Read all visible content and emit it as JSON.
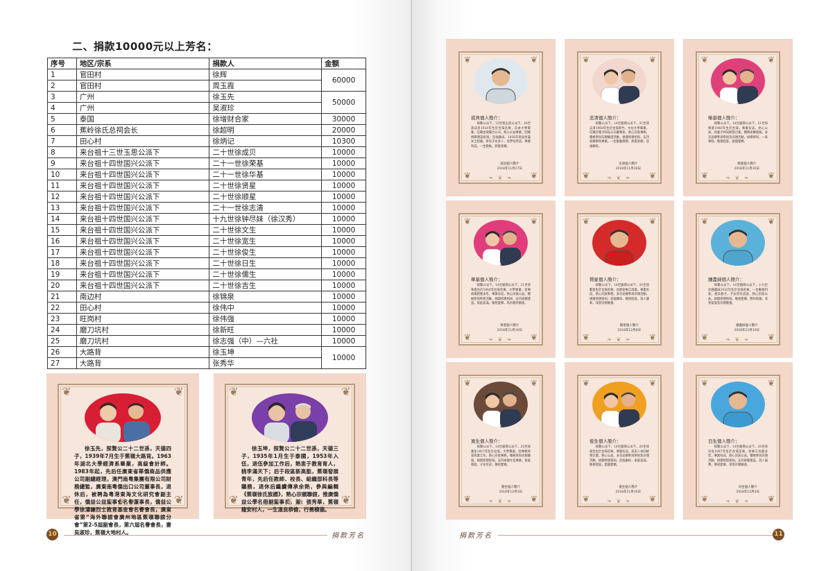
{
  "left_page": {
    "section_title": "二、捐款10000元以上芳名：",
    "table": {
      "headers": [
        "序号",
        "地区/宗系",
        "捐款人",
        "金额"
      ],
      "rows": [
        [
          "1",
          "官田村",
          "徐辉"
        ],
        [
          "2",
          "官田村",
          "周玉霞"
        ],
        [
          "3",
          "广州",
          "徐玉先"
        ],
        [
          "4",
          "广州",
          "吴淑珍"
        ],
        [
          "5",
          "泰国",
          "徐增财合家"
        ],
        [
          "6",
          "蕉岭徐氏总祠会长",
          "徐超明"
        ],
        [
          "7",
          "田心村",
          "徐炳记"
        ],
        [
          "8",
          "来台祖十三世玉思公派下",
          "二十世徐成贝"
        ],
        [
          "9",
          "来台祖十四世国兴公派下",
          "二十一世徐荣基"
        ],
        [
          "10",
          "来台祖十四世国兴公派下",
          "二十一世徐华基"
        ],
        [
          "11",
          "来台祖十四世国兴公派下",
          "二十世徐贤星"
        ],
        [
          "12",
          "来台祖十四世国兴公派下",
          "二十世徐顺星"
        ],
        [
          "13",
          "来台祖十四世国兴公派下",
          "二十一世徐志清"
        ],
        [
          "14",
          "来台祖十四世国兴公派下",
          "十九世徐钟尽妹（徐汉秀）"
        ],
        [
          "15",
          "来台祖十四世国兴公派下",
          "二十世徐文生"
        ],
        [
          "16",
          "来台祖十四世国兴公派下",
          "二十世徐宽生"
        ],
        [
          "17",
          "来台祖十四世国兴公派下",
          "二十世徐俊生"
        ],
        [
          "18",
          "来台祖十四世国兴公派下",
          "二十世徐日生"
        ],
        [
          "19",
          "来台祖十四世国兴公派下",
          "二十世徐儒生"
        ],
        [
          "20",
          "来台祖十四世国兴公派下",
          "二十世徐吉生"
        ],
        [
          "21",
          "南边村",
          "徐锦泉"
        ],
        [
          "22",
          "田心村",
          "徐伟中"
        ],
        [
          "23",
          "旺岗村",
          "徐伟强"
        ],
        [
          "24",
          "磨刀坑村",
          "徐新旺"
        ],
        [
          "25",
          "磨刀坑村",
          "徐志强（中）—六社"
        ],
        [
          "26",
          "大路背",
          "徐玉坤"
        ],
        [
          "27",
          "大路背",
          "张秀华"
        ]
      ],
      "amounts": [
        {
          "value": "60000",
          "rowspan": 2
        },
        {
          "value": "50000",
          "rowspan": 2
        },
        {
          "value": "30000",
          "rowspan": 1
        },
        {
          "value": "20000",
          "rowspan": 1
        },
        {
          "value": "10300",
          "rowspan": 1
        },
        {
          "value": "10000",
          "rowspan": 1
        },
        {
          "value": "10000",
          "rowspan": 1
        },
        {
          "value": "10000",
          "rowspan": 1
        },
        {
          "value": "10000",
          "rowspan": 1
        },
        {
          "value": "10000",
          "rowspan": 1
        },
        {
          "value": "10000",
          "rowspan": 1
        },
        {
          "value": "10000",
          "rowspan": 1
        },
        {
          "value": "10000",
          "rowspan": 1
        },
        {
          "value": "10000",
          "rowspan": 1
        },
        {
          "value": "10000",
          "rowspan": 1
        },
        {
          "value": "10000",
          "rowspan": 1
        },
        {
          "value": "10000",
          "rowspan": 1
        },
        {
          "value": "10000",
          "rowspan": 1
        },
        {
          "value": "10000",
          "rowspan": 1
        },
        {
          "value": "10000",
          "rowspan": 1
        },
        {
          "value": "10000",
          "rowspan": 1
        },
        {
          "value": "10000",
          "rowspan": 1
        },
        {
          "value": "10000",
          "rowspan": 1
        },
        {
          "value": "10000",
          "rowspan": 2
        }
      ]
    },
    "bio_cards": [
      {
        "text": "徐玉先，探賢公二十二世孫，天德四子，1939年7月生于蕉嶺大路背。1963年湖北大學經濟系畢業，高級會計師。1983年起，先后任廣東省華僑商品供應公司副總經理，澳門南粵集團有限公司財務總監，廣東南粵僑出口公司董事長，退休后，被聘為粵港東海文化研究會副主任，僑益公益董事會名譽董事長，僑益公學徐濤謙烈士教育基金會名譽會長，廣東省第“海外聯誼會廣州地區蕉嶺聯誼分會”第2-5屆副會長，第六屆名譽會長，妻吳淑珍，蕉嶺大地村人。"
      },
      {
        "text": "徐玉坤，探賢公二十二世孫，天德三子，1935年1月生于泰國，1953年入伍，退伍參加工作后，熱衷于教育育人，桃李滿天下；后于段區新高能，蕉嶺發展青年，先后任教師、校長、組織部科長等職務，退休后繼續傳承余熱，參與編輯《蕉嶺徐氏族譜》，熱心宗親聯誼，推廣僑益公學名冊副董事長，兼、張秀華，蕉嶺龍安村人，一生溫良恭儉，行善積德。"
      }
    ],
    "footer": {
      "page_number": "10",
      "label": "捐款芳名"
    }
  },
  "right_page": {
    "intros": [
      {
        "title": "成貝個人簡介：",
        "body": "探賢公派下，13世祖玉思公派下，20世孫成貝1934年生於台灣苗栗，日本大學畢業，任職台灣電力公司，熱心公益事業，回鄉捐資建設祖祠，造福桑梓。1956年與吳秀鑾女士結婚，育有子女多人，皆學有所成，事業有成。一生勤勉，熱愛家鄉。",
        "signature": "成貝個人簡介\n2018年11月27日"
      },
      {
        "title": "志清個人簡介：",
        "body": "探賢公派下，14世國興公派下，21世孫志清1960年生於台灣新竹，文化大學畢業，任職於電子科技公司董事長，熱心宗族事務，積極參與宗親聯誼活動，捐資修建祖祠，支持家鄉教育事業，一生勤奮樸實，熱愛家鄉，造福鄉梓。",
        "signature": "志清個人簡介\n2018年11月30日"
      },
      {
        "title": "榮基個人簡介：",
        "body": "探賢公派下，14世國興公派下，21世孫榮基1960年生於台灣，事業有成，熱心公益，與妻子共同經營企業，關懷家鄉發展，多次返鄉參與祭祖及宗親活動，捐資修祠，一家和睦，敬祖睦族，愛國愛鄉。",
        "signature": "榮基個人簡介\n2018年11月30日"
      },
      {
        "title": "華基個人簡介：",
        "body": "探賢公派下，14世國興公派下，21世孫華基生於1964年台灣苗栗，大學畢業，從事商業經營多年，事業有成，熱心宗族公益，積極參與祭祖活動，捐資修建祖祠，支持家鄉建設，家庭美滿，敬祖愛鄉，為宗親所稱道。",
        "signature": "華基個人簡介\n2018年11月30日"
      },
      {
        "title": "賢星個人簡介：",
        "body": "探賢公派下，14世國興公派下，20世孫賢星生於台灣苗栗，長期從事工商業，事業有成，熱心宗族事務，多次返鄉參與宗親活動，捐資修建祖祠，造福鄉梓，敬祖睦族，為人謙和，深受宗親敬重。",
        "signature": "賢星個人簡介\n2018年12月8日"
      },
      {
        "title": "鍾盡妹個人簡介：",
        "body": "探賢公派下，14世國興公派下，十九世徐鍾盡妹1932年生於台灣苗栗，一生勤儉持家，相夫教子，子女皆有成就，熱心宗族公益，捐資修建祖祠，敬祖愛鄉，慈祥和藹，深受家族及宗親敬重。",
        "signature": "鍾盡妹個人簡介\n2018年11月30日"
      },
      {
        "title": "寬生個人簡介：",
        "body": "探賢公派下，14世國興公派下，20世孫寬生1957年生於台灣，大學畢業，從事教育及商業工作，熱心宗族事務，積極參與宗親聯誼，捐資修建祖祠，支持家鄉文化事業，家庭和睦，子女有成，敬祖愛鄉。",
        "signature": "寬生個人簡介\n2018年12月3日"
      },
      {
        "title": "俊生個人簡介：",
        "body": "探賢公派下，14世國興公派下，20世孫俊生生於台灣苗栗，事業有成，與夫人共同經營企業，熱心公益，多次返鄉參與祭祖及宗親活動，捐資修建祖祠，造福桑梓，家庭美滿，敬祖睦族，愛國愛鄉。",
        "signature": "俊生個人簡介\n2018年11月30日"
      },
      {
        "title": "日生個人簡介：",
        "body": "探賢公派下，14世國興公派下，20世孫日生1967年生於台灣苗栗，從事工商業多年，事業有成，熱心宗族公益，積極參與宗親活動，捐資修建祖祠，支持家鄉建設，為人誠懇，敬祖愛鄉，深受宗親稱道。",
        "signature": "日生個人簡介\n2018年12月3日"
      }
    ],
    "footer": {
      "page_number": "11",
      "label": "捐款芳名"
    }
  }
}
